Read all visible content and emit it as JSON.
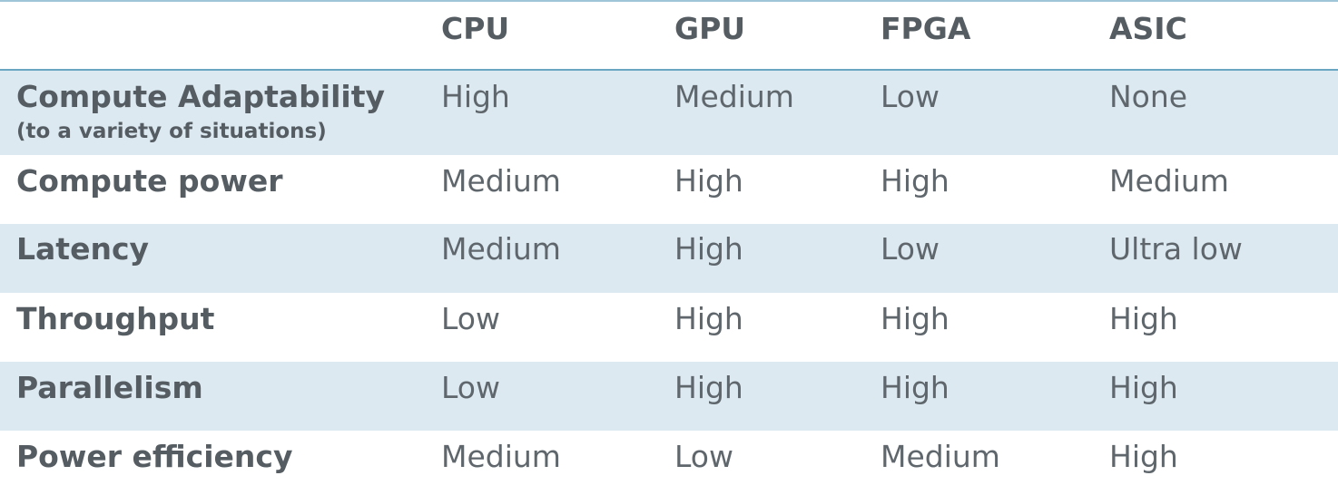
{
  "header": {
    "columns": [
      "CPU",
      "GPU",
      "FPGA",
      "ASIC"
    ]
  },
  "rows": [
    {
      "label": "Compute Adaptability",
      "sublabel": "(to a variety of situations)",
      "values": [
        "High",
        "Medium",
        "Low",
        "None"
      ]
    },
    {
      "label": "Compute power",
      "values": [
        "Medium",
        "High",
        "High",
        "Medium"
      ]
    },
    {
      "label": "Latency",
      "values": [
        "Medium",
        "High",
        "Low",
        "Ultra low"
      ]
    },
    {
      "label": "Throughput",
      "values": [
        "Low",
        "High",
        "High",
        "High"
      ]
    },
    {
      "label": "Parallelism",
      "values": [
        "Low",
        "High",
        "High",
        "High"
      ]
    },
    {
      "label": "Power efficiency",
      "values": [
        "Medium",
        "Low",
        "Medium",
        "High"
      ]
    }
  ],
  "colors": {
    "shade": "#dce9f1",
    "rule": "#6aa6c2",
    "text": "#555d63"
  }
}
